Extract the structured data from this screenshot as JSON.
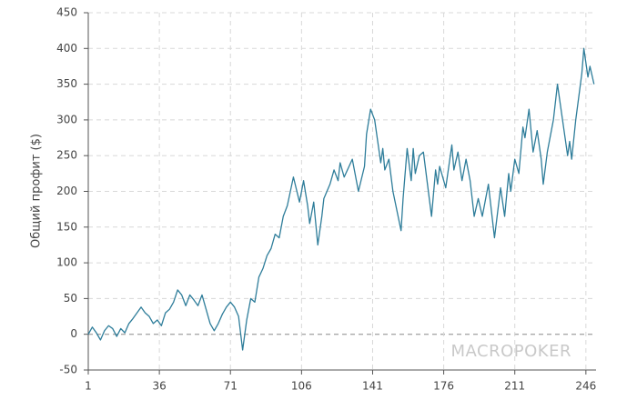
{
  "chart_data": {
    "type": "line",
    "y_label": "Общий профит ($)",
    "watermark": "MACROPOKER",
    "color": "#2e7d9a",
    "grid": true,
    "xlim": [
      1,
      251
    ],
    "xticks": [
      1,
      36,
      71,
      106,
      141,
      176,
      211,
      246
    ],
    "ylim": [
      -50,
      450
    ],
    "yticks": [
      -50,
      0,
      50,
      100,
      150,
      200,
      250,
      300,
      350,
      400,
      450
    ],
    "x": [
      1,
      3,
      5,
      7,
      9,
      11,
      13,
      15,
      17,
      19,
      21,
      23,
      25,
      27,
      29,
      31,
      33,
      35,
      37,
      39,
      41,
      43,
      45,
      47,
      49,
      51,
      53,
      55,
      57,
      59,
      61,
      63,
      65,
      67,
      69,
      71,
      73,
      75,
      77,
      79,
      81,
      83,
      85,
      87,
      89,
      91,
      93,
      95,
      97,
      99,
      102,
      105,
      107,
      109,
      110,
      112,
      114,
      116,
      117,
      120,
      122,
      124,
      125,
      127,
      131,
      134,
      137,
      138,
      140,
      142,
      145,
      146,
      147,
      149,
      151,
      155,
      156,
      158,
      160,
      161,
      162,
      164,
      166,
      168,
      170,
      172,
      173,
      174,
      177,
      180,
      181,
      183,
      185,
      187,
      189,
      191,
      193,
      195,
      198,
      201,
      204,
      206,
      208,
      209,
      211,
      213,
      215,
      216,
      218,
      220,
      222,
      224,
      225,
      227,
      230,
      232,
      234,
      237,
      238,
      239,
      241,
      244,
      245,
      247,
      248,
      250
    ],
    "values": [
      0,
      10,
      2,
      -8,
      5,
      12,
      8,
      -3,
      8,
      2,
      15,
      22,
      30,
      38,
      30,
      25,
      15,
      20,
      12,
      30,
      35,
      45,
      62,
      55,
      40,
      55,
      48,
      40,
      55,
      35,
      15,
      5,
      15,
      28,
      38,
      45,
      38,
      25,
      -22,
      20,
      50,
      45,
      80,
      92,
      110,
      120,
      140,
      135,
      165,
      180,
      220,
      185,
      215,
      180,
      155,
      185,
      125,
      165,
      190,
      210,
      230,
      215,
      240,
      220,
      245,
      200,
      235,
      280,
      315,
      300,
      240,
      260,
      230,
      245,
      200,
      145,
      190,
      260,
      215,
      260,
      225,
      250,
      255,
      210,
      165,
      230,
      210,
      235,
      205,
      265,
      230,
      255,
      215,
      245,
      215,
      165,
      190,
      165,
      210,
      135,
      205,
      165,
      225,
      200,
      245,
      225,
      290,
      275,
      315,
      255,
      285,
      245,
      210,
      255,
      300,
      350,
      310,
      250,
      270,
      245,
      300,
      365,
      400,
      360,
      375,
      350
    ]
  }
}
